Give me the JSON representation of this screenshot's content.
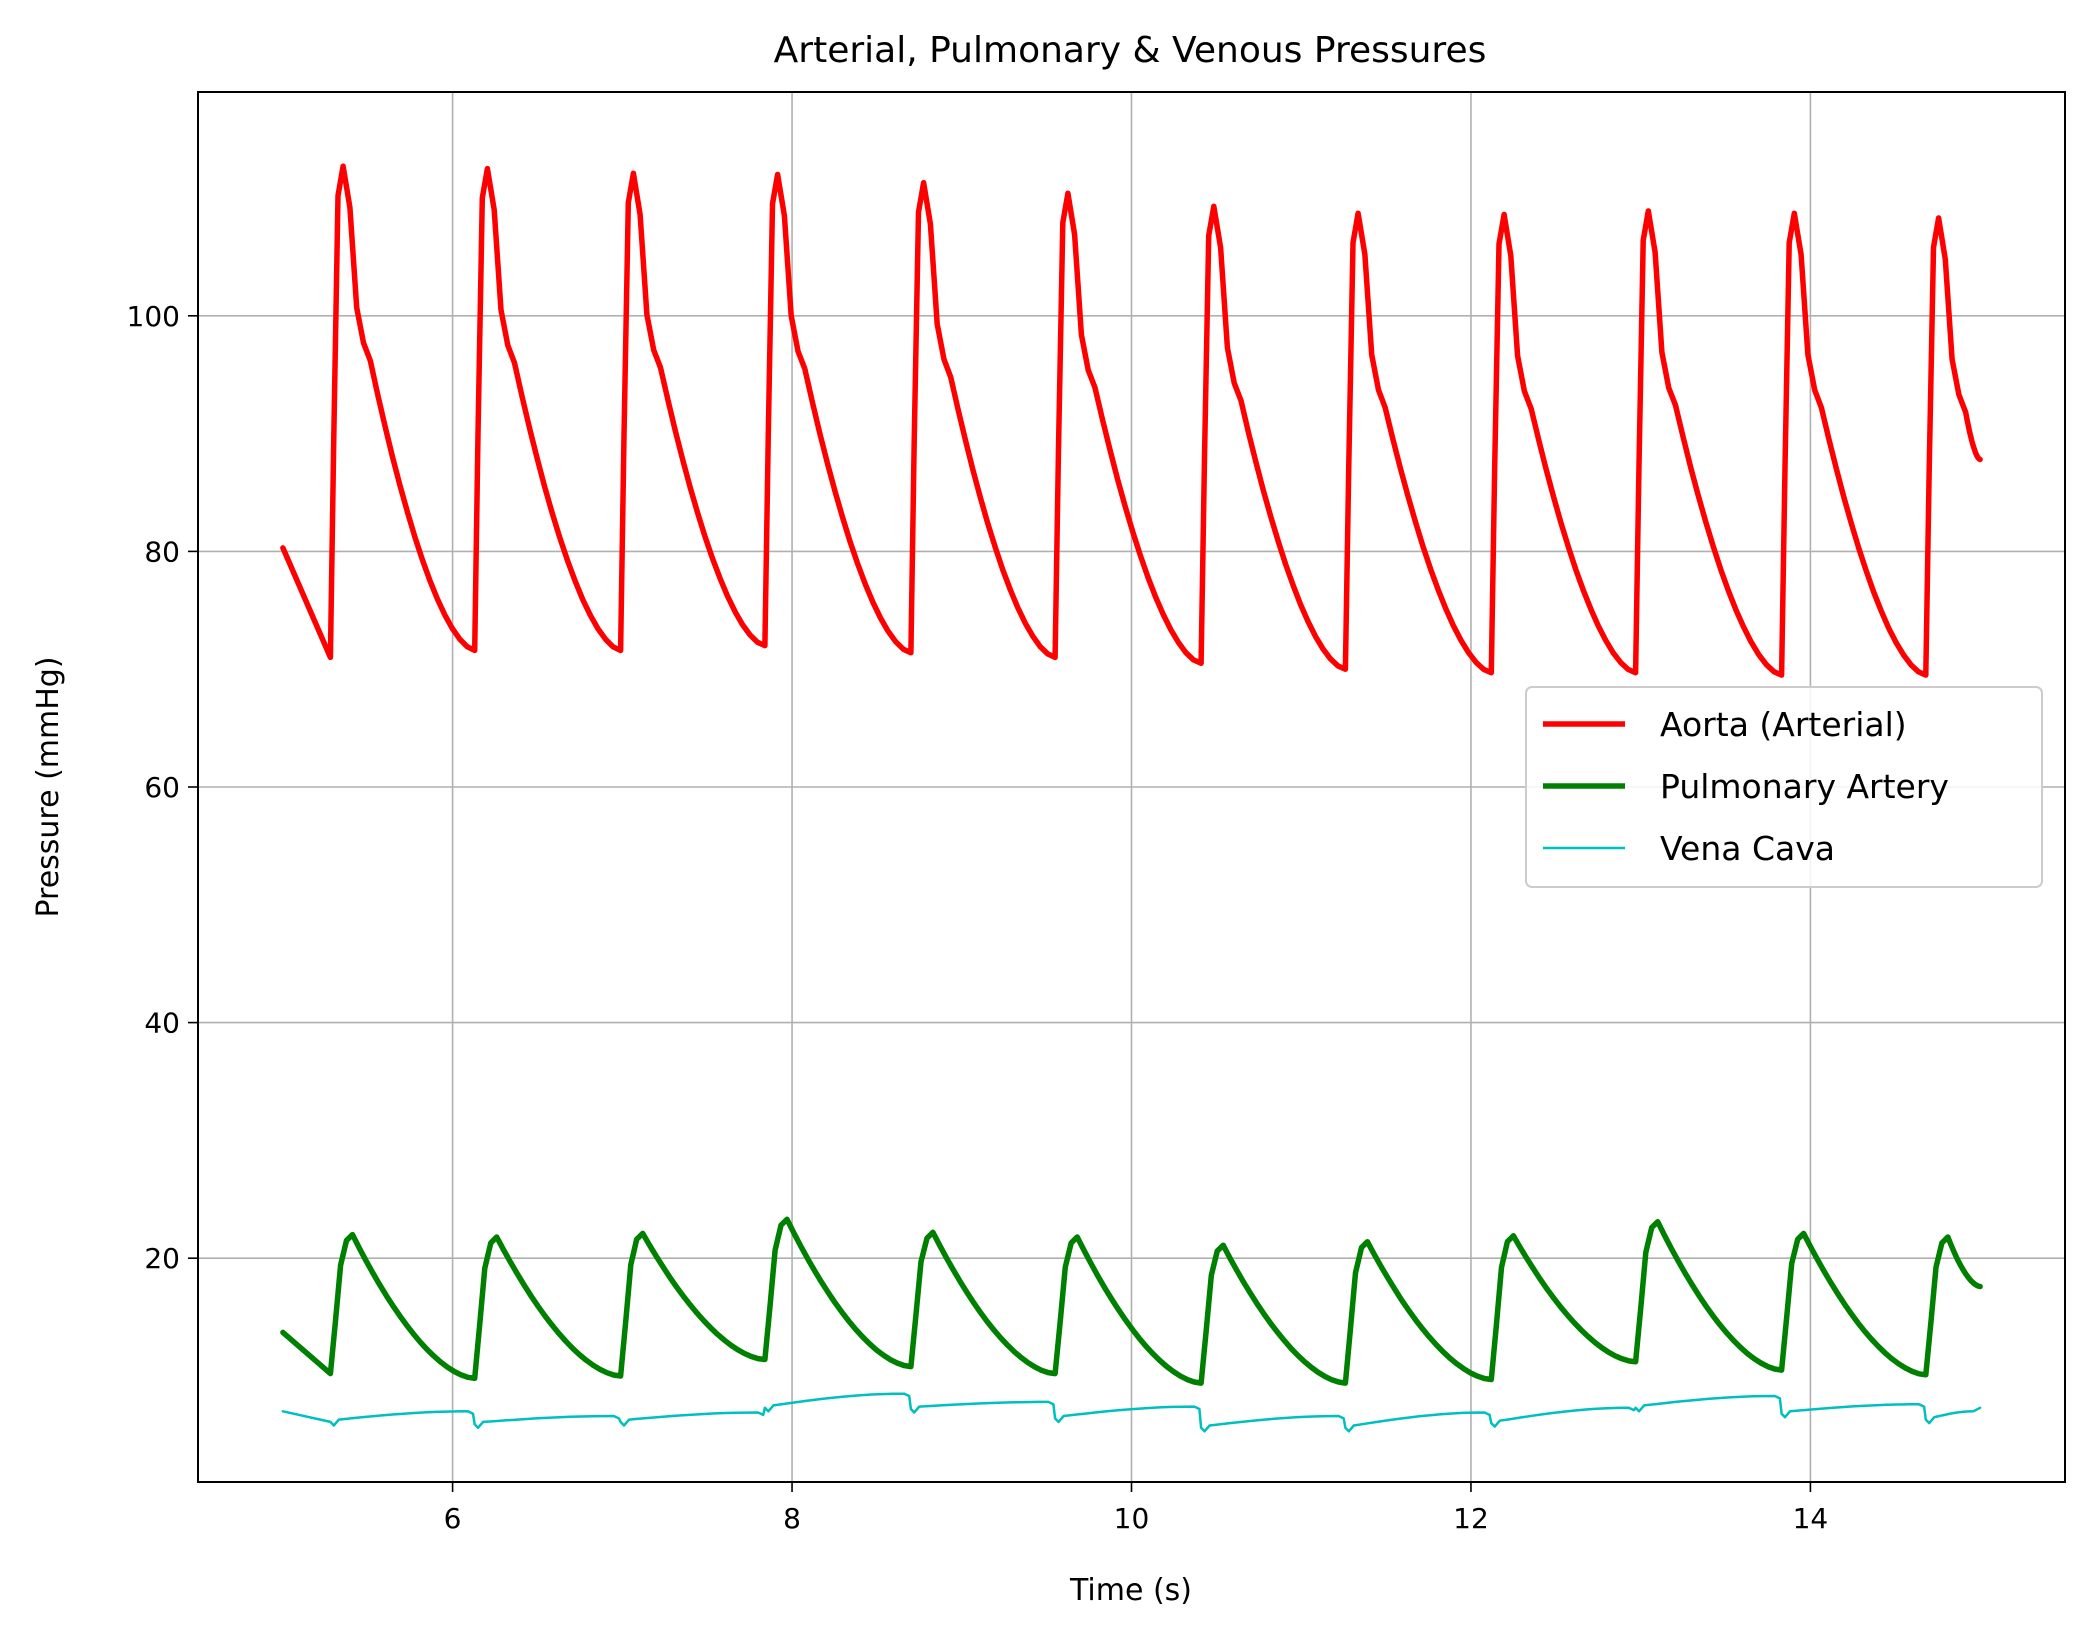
{
  "chart_data": {
    "type": "line",
    "title": "Arterial, Pulmonary & Venous Pressures",
    "xlabel": "Time (s)",
    "ylabel": "Pressure (mmHg)",
    "xlim": [
      4.5,
      15.5
    ],
    "ylim": [
      1,
      119
    ],
    "xticks": [
      6,
      8,
      10,
      12,
      14
    ],
    "yticks": [
      20,
      40,
      60,
      80,
      100
    ],
    "grid": true,
    "legend_position": "center-right",
    "period": 0.855,
    "series": [
      {
        "name": "Aorta (Arterial)",
        "color": "#ff0000",
        "start": {
          "t": 5.0,
          "p": 80.3
        },
        "end": {
          "t": 15.0,
          "p": 87.8
        },
        "cycles": [
          {
            "t_min": 5.28,
            "min": 71.0,
            "peak": 112.7
          },
          {
            "t_min": 6.13,
            "min": 71.6,
            "peak": 112.5
          },
          {
            "t_min": 6.99,
            "min": 71.6,
            "peak": 112.1
          },
          {
            "t_min": 7.84,
            "min": 72.0,
            "peak": 112.0
          },
          {
            "t_min": 8.7,
            "min": 71.4,
            "peak": 111.3
          },
          {
            "t_min": 9.55,
            "min": 71.0,
            "peak": 110.4
          },
          {
            "t_min": 10.41,
            "min": 70.5,
            "peak": 109.3
          },
          {
            "t_min": 11.26,
            "min": 70.0,
            "peak": 108.7
          },
          {
            "t_min": 12.12,
            "min": 69.7,
            "peak": 108.6
          },
          {
            "t_min": 12.97,
            "min": 69.7,
            "peak": 108.9
          },
          {
            "t_min": 13.83,
            "min": 69.5,
            "peak": 108.7
          },
          {
            "t_min": 14.68,
            "min": 69.5,
            "peak": 108.3
          }
        ]
      },
      {
        "name": "Pulmonary Artery",
        "color": "#008000",
        "start": {
          "t": 5.0,
          "p": 13.7
        },
        "end": {
          "t": 15.0,
          "p": 17.6
        },
        "cycles": [
          {
            "t_min": 5.28,
            "min": 10.2,
            "peak": 22.0
          },
          {
            "t_min": 6.13,
            "min": 9.8,
            "peak": 21.8
          },
          {
            "t_min": 6.99,
            "min": 10.0,
            "peak": 22.1
          },
          {
            "t_min": 7.84,
            "min": 11.4,
            "peak": 23.3
          },
          {
            "t_min": 8.7,
            "min": 10.8,
            "peak": 22.2
          },
          {
            "t_min": 9.55,
            "min": 10.2,
            "peak": 21.8
          },
          {
            "t_min": 10.41,
            "min": 9.4,
            "peak": 21.1
          },
          {
            "t_min": 11.26,
            "min": 9.4,
            "peak": 21.4
          },
          {
            "t_min": 12.12,
            "min": 9.7,
            "peak": 21.9
          },
          {
            "t_min": 12.97,
            "min": 11.2,
            "peak": 23.1
          },
          {
            "t_min": 13.83,
            "min": 10.5,
            "peak": 22.1
          },
          {
            "t_min": 14.68,
            "min": 10.1,
            "peak": 21.8
          }
        ]
      },
      {
        "name": "Vena Cava",
        "color": "#00bfbf",
        "start": {
          "t": 5.0,
          "p": 7.0
        },
        "end": {
          "t": 15.0,
          "p": 7.3
        },
        "cycles": [
          {
            "t_min": 5.28,
            "min": 6.1,
            "peak": 7.0
          },
          {
            "t_min": 6.13,
            "min": 5.9,
            "peak": 6.6
          },
          {
            "t_min": 6.99,
            "min": 6.1,
            "peak": 6.9
          },
          {
            "t_min": 7.84,
            "min": 7.3,
            "peak": 8.5
          },
          {
            "t_min": 8.7,
            "min": 7.2,
            "peak": 7.8
          },
          {
            "t_min": 9.55,
            "min": 6.4,
            "peak": 7.4
          },
          {
            "t_min": 10.41,
            "min": 5.6,
            "peak": 6.6
          },
          {
            "t_min": 11.26,
            "min": 5.6,
            "peak": 6.9
          },
          {
            "t_min": 12.12,
            "min": 6.0,
            "peak": 7.3
          },
          {
            "t_min": 12.97,
            "min": 7.3,
            "peak": 8.3
          },
          {
            "t_min": 13.83,
            "min": 6.8,
            "peak": 7.6
          },
          {
            "t_min": 14.68,
            "min": 6.3,
            "peak": 7.0
          }
        ]
      }
    ]
  }
}
